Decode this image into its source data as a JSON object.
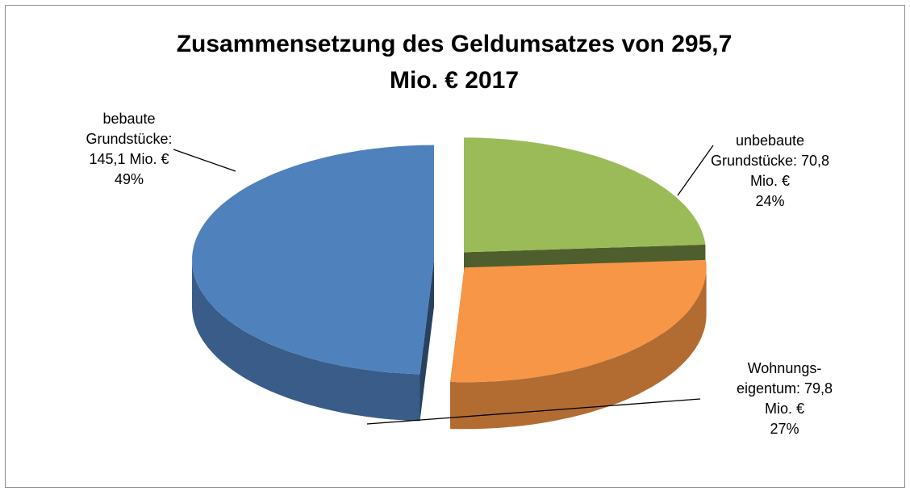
{
  "chart_data": {
    "type": "pie",
    "title": "Zusammensetzung des Geldumsatzes von 295,7 Mio. € 2017",
    "values": [
      70.8,
      79.8,
      145.1
    ],
    "value_labels": [
      "unbebaute Grundstücke: 70,8 Mio. €",
      "Wohnungs-eigentum: 79,8 Mio. €",
      "bebaute Grundstücke: 145,1 Mio. €"
    ],
    "percents": [
      24,
      27,
      49
    ],
    "percent_labels": [
      "24%",
      "27%",
      "49%"
    ],
    "colors": [
      "#9bbb59",
      "#f79646",
      "#4f81bd"
    ]
  }
}
